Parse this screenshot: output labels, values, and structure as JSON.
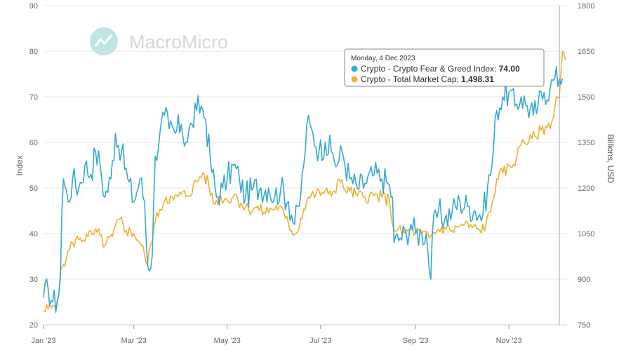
{
  "watermark": {
    "text": "MacroMicro",
    "logo": "macromicro-logo-icon"
  },
  "tooltip": {
    "date": "Monday, 4 Dec 2023",
    "rows": [
      {
        "label": "Crypto - Crypto Fear & Greed Index: ",
        "value": "74.00",
        "color": "#35a8d6"
      },
      {
        "label": "Crypto - Total Market Cap: ",
        "value": "1,498.31",
        "color": "#f0b030"
      }
    ]
  },
  "chart_data": {
    "type": "line",
    "title": "",
    "x_axis": {
      "ticks": [
        "Jan '23",
        "Mar '23",
        "May '23",
        "Jul '23",
        "Sep '23",
        "Nov '23"
      ],
      "range": [
        "2023-01-01",
        "2023-12-09"
      ]
    },
    "y_left": {
      "label": "Index",
      "range": [
        20,
        90
      ],
      "ticks": [
        "20",
        "30",
        "40",
        "50",
        "60",
        "70",
        "80",
        "90"
      ]
    },
    "y_right": {
      "label": "Billions, USD",
      "range": [
        750,
        1800
      ],
      "ticks": [
        "750",
        "900",
        "1050",
        "1200",
        "1350",
        "1500",
        "1650",
        "1800"
      ]
    },
    "grid": true,
    "crosshair_date": "2023-12-04",
    "series": [
      {
        "name": "Crypto - Crypto Fear & Greed Index",
        "axis": "left",
        "color": "#35a8d6",
        "points": [
          [
            "2023-01-01",
            26
          ],
          [
            "2023-01-04",
            28
          ],
          [
            "2023-01-07",
            25
          ],
          [
            "2023-01-10",
            25
          ],
          [
            "2023-01-12",
            30
          ],
          [
            "2023-01-13",
            45
          ],
          [
            "2023-01-14",
            52
          ],
          [
            "2023-01-17",
            47
          ],
          [
            "2023-01-20",
            52
          ],
          [
            "2023-01-24",
            50
          ],
          [
            "2023-01-28",
            55
          ],
          [
            "2023-02-01",
            53
          ],
          [
            "2023-02-04",
            58
          ],
          [
            "2023-02-07",
            55
          ],
          [
            "2023-02-10",
            48
          ],
          [
            "2023-02-14",
            52
          ],
          [
            "2023-02-17",
            62
          ],
          [
            "2023-02-21",
            58
          ],
          [
            "2023-02-25",
            52
          ],
          [
            "2023-03-01",
            47
          ],
          [
            "2023-03-05",
            52
          ],
          [
            "2023-03-08",
            47
          ],
          [
            "2023-03-10",
            33
          ],
          [
            "2023-03-13",
            35
          ],
          [
            "2023-03-15",
            57
          ],
          [
            "2023-03-18",
            62
          ],
          [
            "2023-03-21",
            66
          ],
          [
            "2023-03-24",
            63
          ],
          [
            "2023-03-28",
            62
          ],
          [
            "2023-04-01",
            64
          ],
          [
            "2023-04-04",
            60
          ],
          [
            "2023-04-08",
            64
          ],
          [
            "2023-04-11",
            67
          ],
          [
            "2023-04-14",
            68
          ],
          [
            "2023-04-17",
            65
          ],
          [
            "2023-04-20",
            56
          ],
          [
            "2023-04-24",
            48
          ],
          [
            "2023-04-28",
            50
          ],
          [
            "2023-05-01",
            52
          ],
          [
            "2023-05-05",
            55
          ],
          [
            "2023-05-09",
            52
          ],
          [
            "2023-05-13",
            48
          ],
          [
            "2023-05-18",
            50
          ],
          [
            "2023-05-23",
            50
          ],
          [
            "2023-05-28",
            50
          ],
          [
            "2023-06-01",
            48
          ],
          [
            "2023-06-05",
            50
          ],
          [
            "2023-06-10",
            47
          ],
          [
            "2023-06-14",
            42
          ],
          [
            "2023-06-17",
            46
          ],
          [
            "2023-06-20",
            55
          ],
          [
            "2023-06-22",
            64
          ],
          [
            "2023-06-26",
            62
          ],
          [
            "2023-06-30",
            58
          ],
          [
            "2023-07-04",
            60
          ],
          [
            "2023-07-08",
            58
          ],
          [
            "2023-07-12",
            55
          ],
          [
            "2023-07-15",
            58
          ],
          [
            "2023-07-20",
            52
          ],
          [
            "2023-07-25",
            50
          ],
          [
            "2023-07-30",
            51
          ],
          [
            "2023-08-05",
            53
          ],
          [
            "2023-08-10",
            52
          ],
          [
            "2023-08-14",
            51
          ],
          [
            "2023-08-17",
            48
          ],
          [
            "2023-08-18",
            38
          ],
          [
            "2023-08-22",
            39
          ],
          [
            "2023-08-26",
            40
          ],
          [
            "2023-08-29",
            42
          ],
          [
            "2023-09-01",
            40
          ],
          [
            "2023-09-05",
            40
          ],
          [
            "2023-09-08",
            40
          ],
          [
            "2023-09-11",
            30
          ],
          [
            "2023-09-12",
            40
          ],
          [
            "2023-09-16",
            45
          ],
          [
            "2023-09-20",
            43
          ],
          [
            "2023-09-25",
            45
          ],
          [
            "2023-09-30",
            47
          ],
          [
            "2023-10-05",
            46
          ],
          [
            "2023-10-10",
            45
          ],
          [
            "2023-10-15",
            44
          ],
          [
            "2023-10-18",
            50
          ],
          [
            "2023-10-21",
            55
          ],
          [
            "2023-10-24",
            67
          ],
          [
            "2023-10-28",
            70
          ],
          [
            "2023-11-01",
            71
          ],
          [
            "2023-11-05",
            68
          ],
          [
            "2023-11-09",
            70
          ],
          [
            "2023-11-13",
            68
          ],
          [
            "2023-11-17",
            66
          ],
          [
            "2023-11-20",
            68
          ],
          [
            "2023-11-24",
            71
          ],
          [
            "2023-11-28",
            72
          ],
          [
            "2023-12-01",
            74
          ],
          [
            "2023-12-04",
            74
          ],
          [
            "2023-12-06",
            74
          ]
        ]
      },
      {
        "name": "Crypto - Total Market Cap",
        "axis": "right",
        "color": "#f0b030",
        "points": [
          [
            "2023-01-01",
            795
          ],
          [
            "2023-01-06",
            805
          ],
          [
            "2023-01-10",
            830
          ],
          [
            "2023-01-13",
            940
          ],
          [
            "2023-01-16",
            970
          ],
          [
            "2023-01-20",
            1020
          ],
          [
            "2023-01-25",
            1035
          ],
          [
            "2023-01-30",
            1040
          ],
          [
            "2023-02-03",
            1050
          ],
          [
            "2023-02-07",
            1045
          ],
          [
            "2023-02-10",
            1010
          ],
          [
            "2023-02-15",
            1040
          ],
          [
            "2023-02-20",
            1100
          ],
          [
            "2023-02-24",
            1060
          ],
          [
            "2023-03-01",
            1050
          ],
          [
            "2023-03-05",
            1020
          ],
          [
            "2023-03-08",
            980
          ],
          [
            "2023-03-10",
            950
          ],
          [
            "2023-03-14",
            1070
          ],
          [
            "2023-03-18",
            1130
          ],
          [
            "2023-03-22",
            1170
          ],
          [
            "2023-03-27",
            1160
          ],
          [
            "2023-04-01",
            1180
          ],
          [
            "2023-04-05",
            1175
          ],
          [
            "2023-04-11",
            1220
          ],
          [
            "2023-04-15",
            1250
          ],
          [
            "2023-04-19",
            1210
          ],
          [
            "2023-04-22",
            1150
          ],
          [
            "2023-04-27",
            1170
          ],
          [
            "2023-05-01",
            1160
          ],
          [
            "2023-05-06",
            1180
          ],
          [
            "2023-05-10",
            1150
          ],
          [
            "2023-05-15",
            1130
          ],
          [
            "2023-05-20",
            1135
          ],
          [
            "2023-05-25",
            1120
          ],
          [
            "2023-05-30",
            1130
          ],
          [
            "2023-06-04",
            1140
          ],
          [
            "2023-06-08",
            1100
          ],
          [
            "2023-06-12",
            1060
          ],
          [
            "2023-06-15",
            1050
          ],
          [
            "2023-06-20",
            1130
          ],
          [
            "2023-06-23",
            1170
          ],
          [
            "2023-06-28",
            1180
          ],
          [
            "2023-07-02",
            1185
          ],
          [
            "2023-07-06",
            1180
          ],
          [
            "2023-07-10",
            1190
          ],
          [
            "2023-07-13",
            1230
          ],
          [
            "2023-07-16",
            1200
          ],
          [
            "2023-07-20",
            1190
          ],
          [
            "2023-07-25",
            1175
          ],
          [
            "2023-07-30",
            1170
          ],
          [
            "2023-08-05",
            1175
          ],
          [
            "2023-08-10",
            1170
          ],
          [
            "2023-08-15",
            1160
          ],
          [
            "2023-08-17",
            1080
          ],
          [
            "2023-08-20",
            1060
          ],
          [
            "2023-08-25",
            1050
          ],
          [
            "2023-08-29",
            1065
          ],
          [
            "2023-09-01",
            1055
          ],
          [
            "2023-09-05",
            1050
          ],
          [
            "2023-09-10",
            1035
          ],
          [
            "2023-09-15",
            1060
          ],
          [
            "2023-09-20",
            1070
          ],
          [
            "2023-09-25",
            1060
          ],
          [
            "2023-09-30",
            1075
          ],
          [
            "2023-10-03",
            1080
          ],
          [
            "2023-10-08",
            1070
          ],
          [
            "2023-10-13",
            1060
          ],
          [
            "2023-10-17",
            1080
          ],
          [
            "2023-10-20",
            1120
          ],
          [
            "2023-10-24",
            1230
          ],
          [
            "2023-10-28",
            1250
          ],
          [
            "2023-11-02",
            1270
          ],
          [
            "2023-11-06",
            1300
          ],
          [
            "2023-11-10",
            1360
          ],
          [
            "2023-11-14",
            1350
          ],
          [
            "2023-11-18",
            1370
          ],
          [
            "2023-11-22",
            1390
          ],
          [
            "2023-11-26",
            1400
          ],
          [
            "2023-11-30",
            1430
          ],
          [
            "2023-12-02",
            1500
          ],
          [
            "2023-12-04",
            1498.31
          ],
          [
            "2023-12-06",
            1650
          ],
          [
            "2023-12-08",
            1620
          ]
        ]
      }
    ]
  }
}
